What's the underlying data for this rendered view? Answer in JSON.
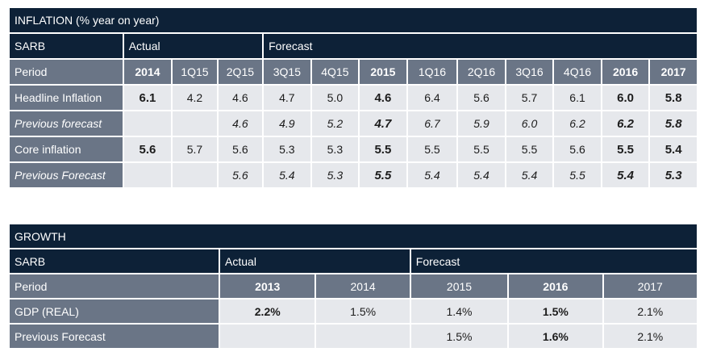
{
  "inflation": {
    "title": "INFLATION (% year on year)",
    "header_row": {
      "label": "SARB",
      "actual": "Actual",
      "forecast": "Forecast"
    },
    "period_label": "Period",
    "periods": [
      "2014",
      "1Q15",
      "2Q15",
      "3Q15",
      "4Q15",
      "2015",
      "1Q16",
      "2Q16",
      "3Q16",
      "4Q16",
      "2016",
      "2017"
    ],
    "rows": [
      {
        "label": "Headline Inflation",
        "values": [
          "6.1",
          "4.2",
          "4.6",
          "4.7",
          "5.0",
          "4.6",
          "6.4",
          "5.6",
          "5.7",
          "6.1",
          "6.0",
          "5.8"
        ]
      },
      {
        "label": "Previous forecast",
        "values": [
          "",
          "",
          "4.6",
          "4.9",
          "5.2",
          "4.7",
          "6.7",
          "5.9",
          "6.0",
          "6.2",
          "6.2",
          "5.8"
        ]
      },
      {
        "label": "Core inflation",
        "values": [
          "5.6",
          "5.7",
          "5.6",
          "5.3",
          "5.3",
          "5.5",
          "5.5",
          "5.5",
          "5.5",
          "5.6",
          "5.5",
          "5.4"
        ]
      },
      {
        "label": "Previous Forecast",
        "values": [
          "",
          "",
          "5.6",
          "5.4",
          "5.3",
          "5.5",
          "5.4",
          "5.4",
          "5.4",
          "5.5",
          "5.4",
          "5.3"
        ]
      }
    ]
  },
  "growth": {
    "title": "GROWTH",
    "header_row": {
      "label": "SARB",
      "actual": "Actual",
      "forecast": "Forecast"
    },
    "period_label": "Period",
    "periods": [
      "2013",
      "2014",
      "2015",
      "2016",
      "2017"
    ],
    "rows": [
      {
        "label": "GDP (REAL)",
        "values": [
          "2.2%",
          "1.5%",
          "1.4%",
          "1.5%",
          "2.1%"
        ]
      },
      {
        "label": "Previous Forecast",
        "values": [
          "",
          "",
          "1.5%",
          "1.6%",
          "2.1%"
        ]
      }
    ]
  },
  "colors": {
    "title_bg": "#0d2137",
    "header_bg": "#6a7586",
    "cell_bg": "#e6e8ec"
  }
}
